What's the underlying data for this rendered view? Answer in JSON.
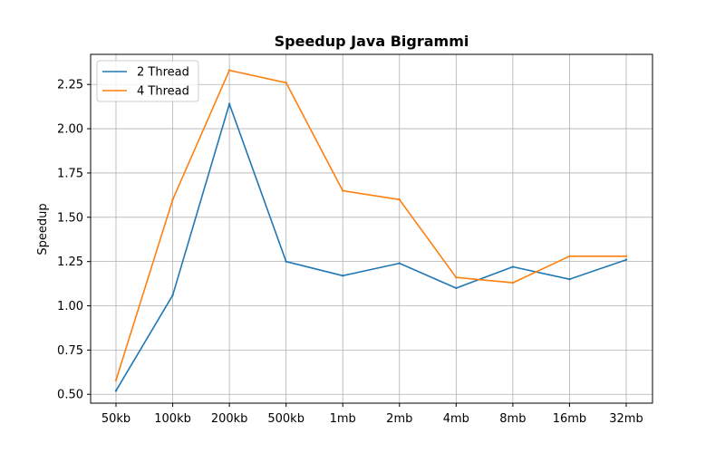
{
  "chart_data": {
    "type": "line",
    "title": "Speedup Java Bigrammi",
    "xlabel": "",
    "ylabel": "Speedup",
    "categories": [
      "50kb",
      "100kb",
      "200kb",
      "500kb",
      "1mb",
      "2mb",
      "4mb",
      "8mb",
      "16mb",
      "32mb"
    ],
    "series": [
      {
        "name": "2 Thread",
        "color": "#1f77b4",
        "values": [
          0.52,
          1.06,
          2.14,
          1.25,
          1.17,
          1.24,
          1.1,
          1.22,
          1.15,
          1.26
        ]
      },
      {
        "name": "4 Thread",
        "color": "#ff7f0e",
        "values": [
          0.58,
          1.6,
          2.33,
          2.26,
          1.65,
          1.6,
          1.16,
          1.13,
          1.28,
          1.28
        ]
      }
    ],
    "ylim": [
      0.45,
      2.42
    ],
    "yticks": [
      0.5,
      0.75,
      1.0,
      1.25,
      1.5,
      1.75,
      2.0,
      2.25
    ],
    "ytick_labels": [
      "0.50",
      "0.75",
      "1.00",
      "1.25",
      "1.50",
      "1.75",
      "2.00",
      "2.25"
    ],
    "grid": true,
    "legend_position": "top-left"
  }
}
